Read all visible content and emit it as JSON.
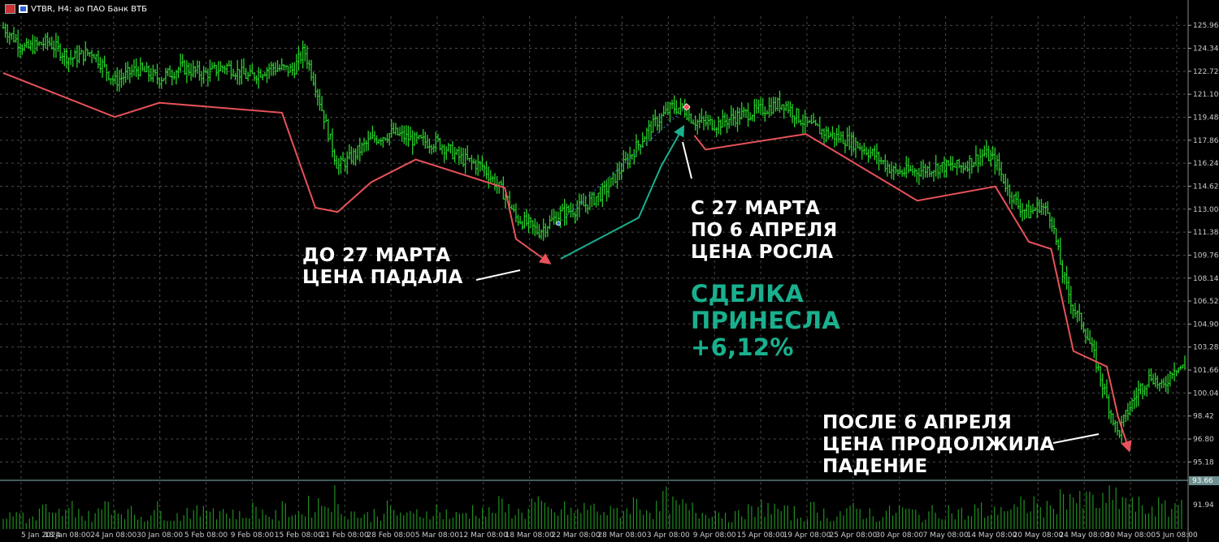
{
  "header": {
    "symbol_label": "VTBR, H4:  ао ПАО Банк ВТБ",
    "icons": [
      "chart-window-icon",
      "symbol-icon"
    ]
  },
  "annotations": {
    "before": "ДО 27 МАРТА\nЦЕНА ПАДАЛА",
    "during": "С 27 МАРТА\nПО 6 АПРЕЛЯ\nЦЕНА РОСЛА",
    "result": "СДЕЛКА\nПРИНЕСЛА\n+6,12%",
    "after": "ПОСЛЕ 6 АПРЕЛЯ\nЦЕНА ПРОДОЛЖИЛА\nПАДЕНИЕ"
  },
  "colors": {
    "background": "#000000",
    "grid": "#4a4a4a",
    "price_bars": "#27d12a",
    "trend_down": "#e8525a",
    "trend_up": "#19b08e",
    "text": "#ffffff",
    "result_text": "#19b08e",
    "volume": "#1f8f1f"
  },
  "chart_data": {
    "type": "line",
    "instrument": "VTBR",
    "timeframe": "H4",
    "y_ticks": [
      "125.96",
      "124.34",
      "122.72",
      "121.10",
      "119.48",
      "117.86",
      "116.24",
      "114.62",
      "113.00",
      "111.38",
      "109.76",
      "108.14",
      "106.52",
      "104.90",
      "103.28",
      "101.66",
      "100.04",
      "98.42",
      "96.80",
      "95.18"
    ],
    "ylim": [
      94.0,
      126.6
    ],
    "x_ticks": [
      "5 Jan 2024",
      "18 Jan 08:00",
      "24 Jan 08:00",
      "30 Jan 08:00",
      "5 Feb 08:00",
      "9 Feb 08:00",
      "15 Feb 08:00",
      "21 Feb 08:00",
      "28 Feb 08:00",
      "5 Mar 08:00",
      "12 Mar 08:00",
      "18 Mar 08:00",
      "22 Mar 08:00",
      "28 Mar 08:00",
      "3 Apr 08:00",
      "9 Apr 08:00",
      "15 Apr 08:00",
      "19 Apr 08:00",
      "25 Apr 08:00",
      "30 Apr 08:00",
      "7 May 08:00",
      "14 May 08:00",
      "20 May 08:00",
      "24 May 08:00",
      "30 May 08:00",
      "5 Jun 08:00"
    ],
    "price_path": [
      [
        0,
        125.8
      ],
      [
        2,
        124.3
      ],
      [
        4,
        124.8
      ],
      [
        6,
        123.6
      ],
      [
        8,
        124.1
      ],
      [
        10,
        122.0
      ],
      [
        12,
        122.9
      ],
      [
        14,
        122.2
      ],
      [
        16,
        123.0
      ],
      [
        18,
        122.5
      ],
      [
        20,
        123.1
      ],
      [
        22,
        122.3
      ],
      [
        24,
        123.0
      ],
      [
        26,
        122.8
      ],
      [
        27,
        124.2
      ],
      [
        28,
        121.8
      ],
      [
        29,
        118.8
      ],
      [
        30,
        116.0
      ],
      [
        31,
        116.5
      ],
      [
        33,
        117.9
      ],
      [
        35,
        118.4
      ],
      [
        37,
        117.8
      ],
      [
        39,
        117.7
      ],
      [
        41,
        116.6
      ],
      [
        43,
        116.0
      ],
      [
        45,
        114.0
      ],
      [
        46,
        112.4
      ],
      [
        47,
        112.0
      ],
      [
        48,
        111.4
      ],
      [
        50,
        112.7
      ],
      [
        52,
        113.2
      ],
      [
        54,
        114.3
      ],
      [
        56,
        116.5
      ],
      [
        58,
        118.7
      ],
      [
        60,
        120.2
      ],
      [
        61,
        120.1
      ],
      [
        62,
        119.2
      ],
      [
        64,
        119.0
      ],
      [
        66,
        119.6
      ],
      [
        68,
        120.0
      ],
      [
        70,
        120.5
      ],
      [
        72,
        119.0
      ],
      [
        74,
        118.3
      ],
      [
        76,
        117.8
      ],
      [
        78,
        116.9
      ],
      [
        80,
        115.6
      ],
      [
        82,
        115.7
      ],
      [
        84,
        116.0
      ],
      [
        86,
        116.0
      ],
      [
        88,
        116.9
      ],
      [
        89,
        116.4
      ],
      [
        90,
        114.6
      ],
      [
        91,
        113.3
      ],
      [
        92,
        112.7
      ],
      [
        93,
        113.3
      ],
      [
        94,
        112.5
      ],
      [
        95,
        108.5
      ],
      [
        96,
        106.0
      ],
      [
        97,
        104.6
      ],
      [
        98,
        102.3
      ],
      [
        99,
        99.6
      ],
      [
        100,
        97.1
      ],
      [
        101,
        99.0
      ],
      [
        102,
        100.4
      ],
      [
        103,
        101.3
      ],
      [
        104,
        100.3
      ],
      [
        105,
        101.9
      ],
      [
        106,
        101.8
      ]
    ],
    "volume": [
      0.4,
      0.5,
      0.3,
      0.6,
      0.4,
      0.5,
      0.7,
      0.4,
      0.5,
      0.9,
      0.6,
      0.5,
      0.4,
      0.6,
      0.5,
      0.4,
      0.6,
      0.5,
      0.7,
      0.6,
      0.5,
      0.4,
      0.6,
      0.5,
      0.4,
      0.6,
      0.5,
      0.7,
      0.8,
      1.0,
      0.6,
      0.5,
      0.4,
      0.5,
      0.6,
      0.5,
      0.4,
      0.5,
      0.6,
      0.5,
      0.4,
      0.5,
      0.6,
      0.5,
      0.7,
      0.6,
      0.5,
      0.8,
      0.6,
      0.5,
      0.6,
      0.5,
      0.7,
      0.6,
      0.5,
      0.6,
      0.8,
      0.7,
      0.6,
      0.9,
      0.7,
      0.6,
      0.5,
      0.6,
      0.5,
      0.4,
      0.6,
      0.5,
      0.7,
      0.6,
      0.5,
      0.4,
      0.6,
      0.5,
      0.4,
      0.5,
      0.6,
      0.5,
      0.4,
      0.5,
      0.6,
      0.5,
      0.4,
      0.5,
      0.6,
      0.5,
      0.4,
      0.6,
      0.5,
      0.7,
      0.6,
      0.7,
      0.8,
      0.6,
      0.9,
      1.1,
      0.8,
      0.9,
      0.8,
      1.0,
      0.9,
      0.7,
      0.6,
      0.7,
      0.6,
      0.8,
      0.7
    ],
    "volume_ticks": [
      "93.66",
      "91.94"
    ],
    "trend_lines": [
      {
        "direction": "down",
        "points": [
          [
            0,
            122.6
          ],
          [
            10,
            119.5
          ],
          [
            14,
            120.5
          ],
          [
            25,
            119.8
          ],
          [
            28,
            113.1
          ],
          [
            30,
            112.8
          ],
          [
            33,
            114.9
          ],
          [
            37,
            116.5
          ],
          [
            45,
            114.5
          ],
          [
            46,
            110.9
          ],
          [
            49,
            109.2
          ]
        ]
      },
      {
        "direction": "up",
        "points": [
          [
            50,
            109.5
          ],
          [
            57,
            112.4
          ],
          [
            59,
            116.0
          ],
          [
            61,
            118.8
          ]
        ]
      },
      {
        "direction": "down",
        "points": [
          [
            62,
            118.2
          ],
          [
            63,
            117.2
          ],
          [
            72,
            118.3
          ],
          [
            82,
            113.6
          ],
          [
            89,
            114.6
          ],
          [
            92,
            110.7
          ],
          [
            94,
            110.2
          ],
          [
            96,
            103.0
          ],
          [
            99,
            101.9
          ],
          [
            100,
            98.4
          ],
          [
            101,
            96.0
          ]
        ]
      }
    ]
  }
}
